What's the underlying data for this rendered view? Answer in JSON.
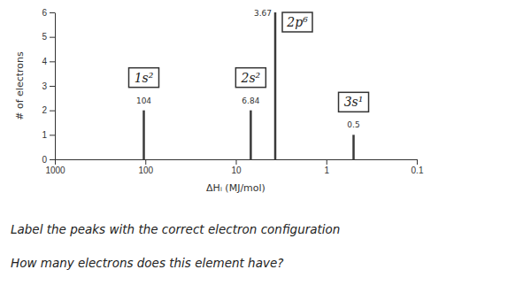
{
  "chart_data": {
    "type": "spectrum",
    "x_label": "ΔHᵢ (MJ/mol)",
    "y_label": "# of electrons",
    "x": [
      104,
      6.84,
      3.67,
      0.5
    ],
    "values": [
      2,
      2,
      6,
      1
    ],
    "peak_labels": [
      "1s²",
      "2s²",
      "2p⁶",
      "3s¹"
    ],
    "annotations": [
      "Label the peaks with the correct electron configuration",
      "How many electrons does this element have?"
    ],
    "log": "x",
    "xlim": [
      1000,
      0.1
    ],
    "xticks": [
      1000,
      100,
      10,
      1,
      0.1
    ],
    "ylim": [
      0,
      6
    ],
    "yticks": [
      0,
      1,
      2,
      3,
      4,
      5,
      6
    ],
    "color": "#3a3a3a"
  }
}
